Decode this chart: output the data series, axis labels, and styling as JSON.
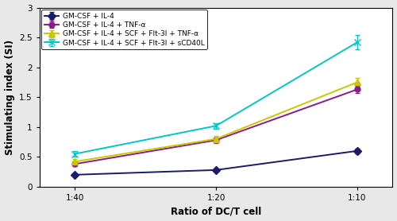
{
  "x_labels": [
    "1:40",
    "1:20",
    "1:10"
  ],
  "x_values": [
    0,
    1,
    2
  ],
  "series": [
    {
      "label": "GM-CSF + IL-4",
      "color": "#1a1a6e",
      "values": [
        0.2,
        0.28,
        0.6
      ],
      "yerr": [
        0.03,
        0.03,
        0.04
      ],
      "marker": "D",
      "markersize": 5,
      "linestyle": "-"
    },
    {
      "label": "GM-CSF + IL-4 + TNF-α",
      "color": "#8b1a8b",
      "values": [
        0.38,
        0.78,
        1.63
      ],
      "yerr": [
        0.04,
        0.05,
        0.06
      ],
      "marker": "o",
      "markersize": 5,
      "linestyle": "-"
    },
    {
      "label": "GM-CSF + IL-4 + SCF + Flt-3l + TNF-α",
      "color": "#c8c800",
      "values": [
        0.42,
        0.8,
        1.75
      ],
      "yerr": [
        0.04,
        0.05,
        0.07
      ],
      "marker": "^",
      "markersize": 6,
      "linestyle": "-"
    },
    {
      "label": "GM-CSF + IL-4 + SCF + Flt-3l + sCD40L",
      "color": "#00c8c8",
      "values": [
        0.55,
        1.02,
        2.42
      ],
      "yerr": [
        0.05,
        0.05,
        0.12
      ],
      "marker": "x",
      "markersize": 6,
      "linestyle": "-"
    }
  ],
  "xlabel": "Ratio of DC/T cell",
  "ylabel": "Stimulating index (SI)",
  "ylim": [
    0,
    3.0
  ],
  "yticks": [
    0,
    0.5,
    1.0,
    1.5,
    2.0,
    2.5,
    3.0
  ],
  "ytick_labels": [
    "0",
    "0.5",
    "1",
    "1.5",
    "2",
    "2.5",
    "3"
  ],
  "title": "",
  "legend_fontsize": 6.5,
  "axis_fontsize": 8.5,
  "tick_fontsize": 7.5,
  "linewidth": 1.4,
  "background_color": "#ffffff",
  "fig_facecolor": "#e8e8e8"
}
